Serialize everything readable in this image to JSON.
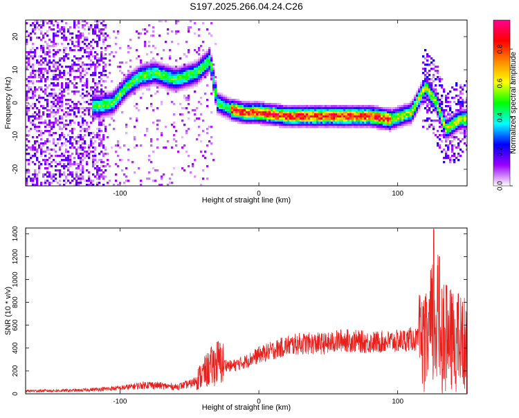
{
  "title": "S197.2025.266.04.24.C26",
  "chart_data": [
    {
      "type": "heatmap",
      "title": "S197.2025.266.04.24.C26",
      "xlabel": "Height of straight line (km)",
      "ylabel": "Frequency (Hz)",
      "xlim": [
        -168,
        150
      ],
      "ylim": [
        -25,
        25
      ],
      "xticks": [
        -100,
        0,
        100
      ],
      "yticks": [
        -20,
        -10,
        0,
        10,
        20
      ],
      "colorbar": {
        "label": "Normalized spectral amplitude",
        "range": [
          0,
          0.97
        ],
        "ticks": [
          0.0,
          0.2,
          0.4,
          0.6,
          0.8
        ],
        "tick_labels": [
          "0.0",
          "0.2",
          "0.4",
          "0.6",
          "0.8"
        ],
        "colors": [
          "#ffffff",
          "#9a00ff",
          "#0000ff",
          "#00ffff",
          "#00ff00",
          "#ffff00",
          "#ff8800",
          "#ff0000",
          "#ff0090"
        ]
      },
      "ridge": [
        {
          "x": -115,
          "y": -1
        },
        {
          "x": -105,
          "y": 0
        },
        {
          "x": -95,
          "y": 5
        },
        {
          "x": -85,
          "y": 8
        },
        {
          "x": -75,
          "y": 9
        },
        {
          "x": -60,
          "y": 7
        },
        {
          "x": -45,
          "y": 9
        },
        {
          "x": -35,
          "y": 13
        },
        {
          "x": -30,
          "y": 0
        },
        {
          "x": -20,
          "y": -2
        },
        {
          "x": -10,
          "y": -3
        },
        {
          "x": 0,
          "y": -3
        },
        {
          "x": 20,
          "y": -4
        },
        {
          "x": 40,
          "y": -4
        },
        {
          "x": 60,
          "y": -4
        },
        {
          "x": 80,
          "y": -4
        },
        {
          "x": 95,
          "y": -5
        },
        {
          "x": 110,
          "y": -3
        },
        {
          "x": 120,
          "y": 5
        },
        {
          "x": 128,
          "y": 0
        },
        {
          "x": 135,
          "y": -8
        },
        {
          "x": 145,
          "y": -5
        }
      ]
    },
    {
      "type": "line",
      "xlabel": "Height of straight line (km)",
      "ylabel": "SNR (10 * v/v)",
      "xlim": [
        -168,
        150
      ],
      "ylim": [
        0,
        1450
      ],
      "xticks": [
        -100,
        0,
        100
      ],
      "yticks": [
        0,
        200,
        400,
        600,
        800,
        1000,
        1200,
        1400
      ],
      "series": [
        {
          "name": "SNR",
          "color": "#e8201c",
          "envelope": [
            {
              "x": -168,
              "y": 25
            },
            {
              "x": -130,
              "y": 30
            },
            {
              "x": -100,
              "y": 50
            },
            {
              "x": -80,
              "y": 80
            },
            {
              "x": -60,
              "y": 60
            },
            {
              "x": -48,
              "y": 90
            },
            {
              "x": -38,
              "y": 200
            },
            {
              "x": -30,
              "y": 280
            },
            {
              "x": -20,
              "y": 240
            },
            {
              "x": -10,
              "y": 280
            },
            {
              "x": 0,
              "y": 340
            },
            {
              "x": 10,
              "y": 380
            },
            {
              "x": 20,
              "y": 420
            },
            {
              "x": 30,
              "y": 440
            },
            {
              "x": 50,
              "y": 440
            },
            {
              "x": 60,
              "y": 470
            },
            {
              "x": 80,
              "y": 450
            },
            {
              "x": 100,
              "y": 460
            },
            {
              "x": 110,
              "y": 480
            },
            {
              "x": 120,
              "y": 450
            },
            {
              "x": 127,
              "y": 700
            },
            {
              "x": 135,
              "y": 500
            },
            {
              "x": 150,
              "y": 450
            }
          ],
          "peaks": [
            {
              "x": 126,
              "y": 1440
            },
            {
              "x": 130,
              "y": 1200
            },
            {
              "x": 135,
              "y": 950
            },
            {
              "x": 143,
              "y": 800
            }
          ]
        }
      ]
    }
  ]
}
